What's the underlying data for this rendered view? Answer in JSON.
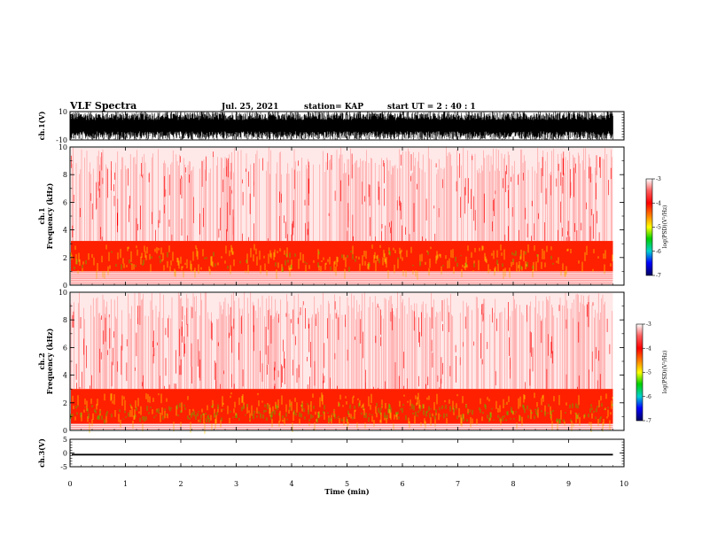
{
  "header": {
    "title": "VLF Spectra",
    "date": "Jul. 25, 2021",
    "station": "station= KAP",
    "start": "start  UT =   2 : 40 : 1"
  },
  "chart_data": [
    {
      "type": "line",
      "name": "waveform-ch1",
      "ylabel": "ch.1(V)",
      "ylim": [
        -10,
        10
      ],
      "yticks": [
        "10",
        "-10"
      ],
      "xlim": [
        0,
        10
      ]
    },
    {
      "type": "heatmap",
      "name": "spectrogram-ch1",
      "ylabel": "ch.1\nFrequency (kHz)",
      "ylim": [
        0,
        10
      ],
      "yticks": [
        "0",
        "2",
        "4",
        "6",
        "8",
        "10"
      ],
      "xlim": [
        0,
        10
      ],
      "data_end_min": 9.8,
      "dominant_band_khz": [
        1,
        3.2
      ],
      "colorbar": {
        "label": "log(PSD)(V²/Hz)",
        "range": [
          -7,
          -3
        ],
        "ticks": [
          "-3",
          "-4",
          "-5",
          "-6",
          "-7"
        ]
      }
    },
    {
      "type": "heatmap",
      "name": "spectrogram-ch2",
      "ylabel": "ch.2\nFrequency (kHz)",
      "ylim": [
        0,
        10
      ],
      "yticks": [
        "0",
        "2",
        "4",
        "6",
        "8",
        "10"
      ],
      "xlim": [
        0,
        10
      ],
      "data_end_min": 9.8,
      "dominant_band_khz": [
        0.5,
        3
      ],
      "colorbar": {
        "label": "log(PSD)(V²/Hz)",
        "range": [
          -7,
          -3
        ],
        "ticks": [
          "-3",
          "-4",
          "-5",
          "-6",
          "-7"
        ]
      }
    },
    {
      "type": "line",
      "name": "waveform-ch3",
      "ylabel": "ch.3(V)",
      "ylim": [
        -5,
        5
      ],
      "yticks": [
        "5",
        "0",
        "-5"
      ],
      "xlim": [
        0,
        10
      ]
    }
  ],
  "x_axis": {
    "label": "Time (min)",
    "ticks": [
      "0",
      "1",
      "2",
      "3",
      "4",
      "5",
      "6",
      "7",
      "8",
      "9",
      "10"
    ]
  },
  "colors": {
    "red": "#ff0000",
    "yellow": "#ffff00",
    "green": "#00c800",
    "blue": "#0000ff",
    "black": "#000000"
  }
}
